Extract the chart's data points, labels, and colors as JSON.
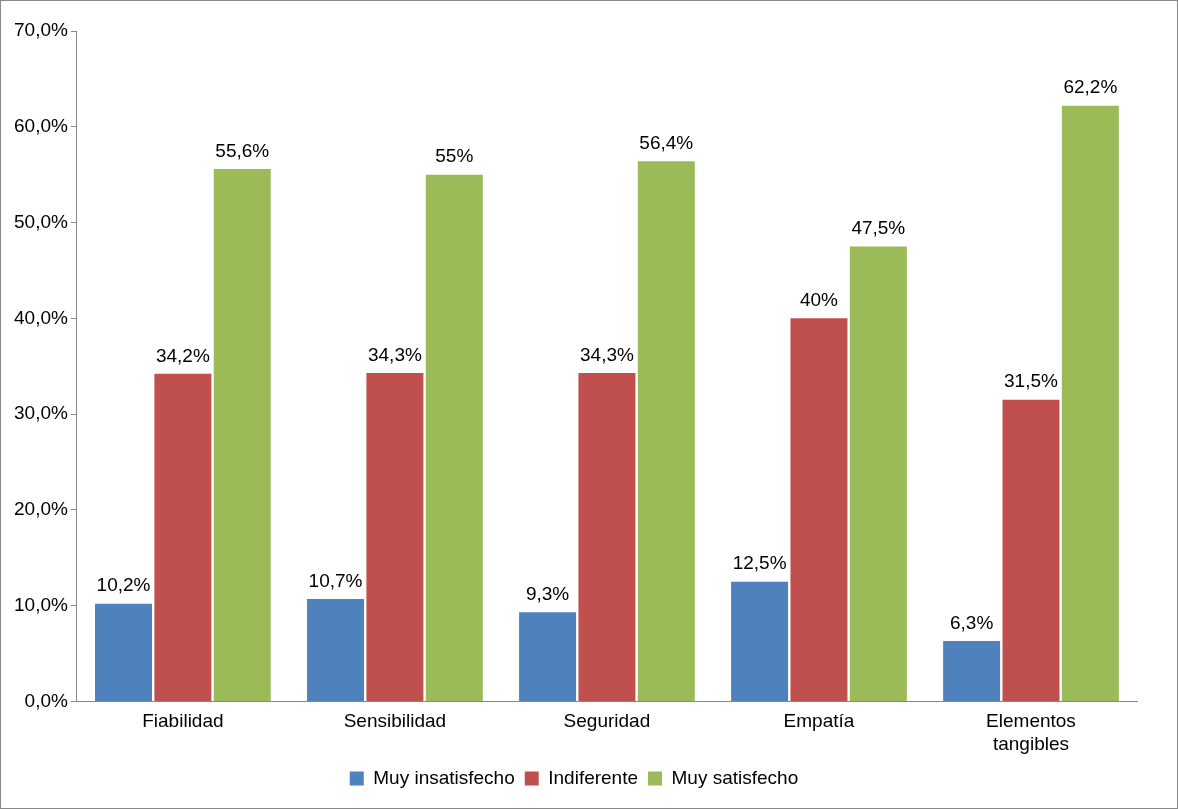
{
  "chart_data": {
    "type": "bar",
    "categories": [
      "Fiabilidad",
      "Sensibilidad",
      "Seguridad",
      "Empatía",
      "Elementos tangibles"
    ],
    "series": [
      {
        "name": "Muy insatisfecho",
        "color": "#4f81bd",
        "values": [
          10.2,
          10.7,
          9.3,
          12.5,
          6.3
        ],
        "value_labels": [
          "10,2%",
          "10,7%",
          "9,3%",
          "12,5%",
          "6,3%"
        ]
      },
      {
        "name": "Indiferente",
        "color": "#c0504d",
        "values": [
          34.2,
          34.3,
          34.3,
          40,
          31.5
        ],
        "value_labels": [
          "34,2%",
          "34,3%",
          "34,3%",
          "40%",
          "31,5%"
        ]
      },
      {
        "name": "Muy satisfecho",
        "color": "#9bbb59",
        "values": [
          55.6,
          55,
          56.4,
          47.5,
          62.2
        ],
        "value_labels": [
          "55,6%",
          "55%",
          "56,4%",
          "47,5%",
          "62,2%"
        ]
      }
    ],
    "ylim": [
      0,
      70
    ],
    "yticks": [
      {
        "value": 0,
        "label": "0,0%"
      },
      {
        "value": 10,
        "label": "10,0%"
      },
      {
        "value": 20,
        "label": "20,0%"
      },
      {
        "value": 30,
        "label": "30,0%"
      },
      {
        "value": 40,
        "label": "40,0%"
      },
      {
        "value": 50,
        "label": "50,0%"
      },
      {
        "value": 60,
        "label": "60,0%"
      },
      {
        "value": 70,
        "label": "70,0%"
      }
    ],
    "grid": false,
    "legend": "bottom"
  }
}
